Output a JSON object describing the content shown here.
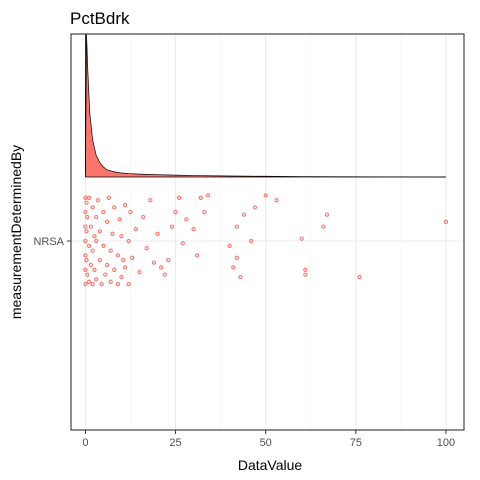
{
  "chart_data": {
    "type": "scatter",
    "title": "PctBdrk",
    "xlabel": "DataValue",
    "ylabel": "measurementDeterminedBy",
    "xlim": [
      -4,
      105
    ],
    "xticks": [
      0,
      25,
      50,
      75,
      100
    ],
    "categories": [
      "NRSA"
    ],
    "grid": true,
    "legend": "none",
    "colors": {
      "point": "#f8766d",
      "density_fill": "#f8766d",
      "density_line": "#000000",
      "grid": "#ebebeb",
      "panel_border": "#333333"
    },
    "density": {
      "x": [
        0,
        0.3,
        0.7,
        1.2,
        2,
        3,
        4,
        5,
        6,
        8,
        10,
        12,
        15,
        20,
        25,
        30,
        40,
        50,
        60,
        70,
        80,
        90,
        100
      ],
      "y": [
        0.03,
        1.0,
        0.72,
        0.45,
        0.26,
        0.15,
        0.1,
        0.07,
        0.05,
        0.036,
        0.028,
        0.024,
        0.02,
        0.016,
        0.013,
        0.01,
        0.007,
        0.005,
        0.003,
        0.002,
        0.001,
        0.0005,
        0.0002
      ]
    },
    "series": [
      {
        "values": [
          {
            "x": 0,
            "y": -0.9
          },
          {
            "x": 0,
            "y": -0.6
          },
          {
            "x": 0,
            "y": -0.3
          },
          {
            "x": 0,
            "y": 0
          },
          {
            "x": 0,
            "y": 0.3
          },
          {
            "x": 0,
            "y": 0.6
          },
          {
            "x": 0,
            "y": 0.9
          },
          {
            "x": 0.3,
            "y": -0.8
          },
          {
            "x": 0.3,
            "y": -0.2
          },
          {
            "x": 0.3,
            "y": 0.4
          },
          {
            "x": 0.5,
            "y": 0.7
          },
          {
            "x": 0.5,
            "y": -0.5
          },
          {
            "x": 1,
            "y": 0.1
          },
          {
            "x": 1,
            "y": -0.9
          },
          {
            "x": 1,
            "y": 0.85
          },
          {
            "x": 1.5,
            "y": -0.3
          },
          {
            "x": 1.5,
            "y": 0.5
          },
          {
            "x": 2,
            "y": 0.9
          },
          {
            "x": 2,
            "y": -0.7
          },
          {
            "x": 2,
            "y": 0.2
          },
          {
            "x": 2.5,
            "y": -0.1
          },
          {
            "x": 2.5,
            "y": 0.6
          },
          {
            "x": 3,
            "y": -0.5
          },
          {
            "x": 3,
            "y": 0.8
          },
          {
            "x": 3,
            "y": 0.0
          },
          {
            "x": 3.5,
            "y": -0.85
          },
          {
            "x": 4,
            "y": 0.4
          },
          {
            "x": 4,
            "y": -0.2
          },
          {
            "x": 4.5,
            "y": 0.9
          },
          {
            "x": 5,
            "y": -0.6
          },
          {
            "x": 5,
            "y": 0.1
          },
          {
            "x": 5.5,
            "y": 0.7
          },
          {
            "x": 6,
            "y": -0.4
          },
          {
            "x": 6,
            "y": 0.5
          },
          {
            "x": 6.5,
            "y": -0.9
          },
          {
            "x": 7,
            "y": 0.2
          },
          {
            "x": 7,
            "y": 0.85
          },
          {
            "x": 7.5,
            "y": -0.15
          },
          {
            "x": 8,
            "y": 0.6
          },
          {
            "x": 8,
            "y": -0.7
          },
          {
            "x": 9,
            "y": 0.3
          },
          {
            "x": 9,
            "y": 0.9
          },
          {
            "x": 9.5,
            "y": -0.45
          },
          {
            "x": 10,
            "y": 0.75
          },
          {
            "x": 10,
            "y": -0.1
          },
          {
            "x": 10.5,
            "y": 0.4
          },
          {
            "x": 11,
            "y": -0.75
          },
          {
            "x": 11,
            "y": 0.55
          },
          {
            "x": 12,
            "y": 0.0
          },
          {
            "x": 12,
            "y": 0.9
          },
          {
            "x": 12.5,
            "y": -0.6
          },
          {
            "x": 13,
            "y": 0.35
          },
          {
            "x": 14,
            "y": -0.25
          },
          {
            "x": 15,
            "y": 0.65
          },
          {
            "x": 16,
            "y": -0.5
          },
          {
            "x": 17,
            "y": 0.15
          },
          {
            "x": 18,
            "y": -0.85
          },
          {
            "x": 19,
            "y": 0.45
          },
          {
            "x": 20,
            "y": -0.15
          },
          {
            "x": 21,
            "y": 0.55
          },
          {
            "x": 22,
            "y": 0.7
          },
          {
            "x": 23,
            "y": 0.4
          },
          {
            "x": 24,
            "y": -0.3
          },
          {
            "x": 25,
            "y": -0.6
          },
          {
            "x": 26,
            "y": -0.9
          },
          {
            "x": 27,
            "y": 0.05
          },
          {
            "x": 28,
            "y": -0.45
          },
          {
            "x": 30,
            "y": -0.25
          },
          {
            "x": 31,
            "y": 0.3
          },
          {
            "x": 32,
            "y": -0.9
          },
          {
            "x": 33,
            "y": -0.6
          },
          {
            "x": 34,
            "y": -0.95
          },
          {
            "x": 40,
            "y": 0.1
          },
          {
            "x": 41,
            "y": 0.55
          },
          {
            "x": 42,
            "y": -0.3
          },
          {
            "x": 42,
            "y": 0.35
          },
          {
            "x": 43,
            "y": 0.75
          },
          {
            "x": 44,
            "y": -0.55
          },
          {
            "x": 46,
            "y": 0.0
          },
          {
            "x": 47,
            "y": -0.7
          },
          {
            "x": 50,
            "y": -0.95
          },
          {
            "x": 53,
            "y": -0.85
          },
          {
            "x": 60,
            "y": -0.05
          },
          {
            "x": 61,
            "y": 0.6
          },
          {
            "x": 61,
            "y": 0.7
          },
          {
            "x": 66,
            "y": -0.3
          },
          {
            "x": 67,
            "y": -0.55
          },
          {
            "x": 76,
            "y": 0.75
          },
          {
            "x": 100,
            "y": -0.4
          }
        ]
      }
    ]
  }
}
